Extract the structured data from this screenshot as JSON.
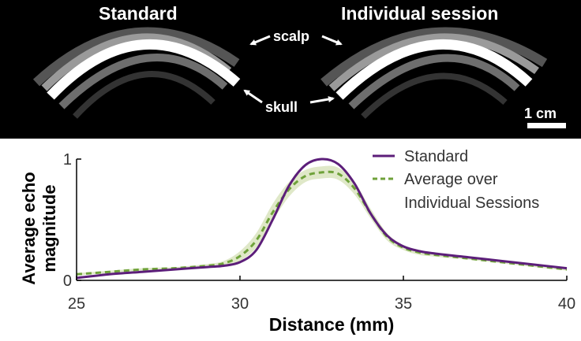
{
  "image_panel": {
    "left_title": "Standard",
    "right_title": "Individual session",
    "scalp_label": "scalp",
    "skull_label": "skull",
    "scale_bar_label": "1 cm",
    "background_color": "#000000",
    "tissue_color": "#ffffff"
  },
  "chart_data": {
    "type": "line",
    "xlabel": "Distance (mm)",
    "ylabel": "Average echo magnitude",
    "xlim": [
      25,
      40
    ],
    "ylim": [
      0,
      1
    ],
    "x_ticks": [
      "25",
      "30",
      "35",
      "40"
    ],
    "y_ticks": [
      "0",
      "1"
    ],
    "grid": false,
    "legend_position": "top-right",
    "legend_entries": [
      "Standard",
      "Average over",
      "Individual Sessions"
    ],
    "series": [
      {
        "name": "Standard",
        "color": "#5c1e7a",
        "style": "solid",
        "x": [
          25,
          26,
          27,
          28,
          29,
          29.5,
          30,
          30.5,
          31,
          31.5,
          32,
          32.5,
          33,
          33.5,
          34,
          34.5,
          35,
          35.5,
          36,
          37,
          38,
          39,
          40
        ],
        "y": [
          0.02,
          0.05,
          0.07,
          0.09,
          0.11,
          0.12,
          0.15,
          0.25,
          0.5,
          0.78,
          0.95,
          1.0,
          0.96,
          0.8,
          0.55,
          0.37,
          0.28,
          0.24,
          0.22,
          0.19,
          0.16,
          0.13,
          0.1
        ]
      },
      {
        "name": "Average over Individual Sessions",
        "color": "#6fa23a",
        "style": "dashed",
        "band_color": "#dfe8c8",
        "x": [
          25,
          26,
          27,
          28,
          29,
          29.5,
          30,
          30.5,
          31,
          31.5,
          32,
          32.5,
          33,
          33.5,
          34,
          34.5,
          35,
          35.5,
          36,
          37,
          38,
          39,
          40
        ],
        "y": [
          0.05,
          0.07,
          0.09,
          0.1,
          0.12,
          0.14,
          0.2,
          0.33,
          0.56,
          0.75,
          0.86,
          0.89,
          0.88,
          0.76,
          0.55,
          0.36,
          0.27,
          0.23,
          0.21,
          0.18,
          0.15,
          0.12,
          0.09
        ],
        "band": [
          0.01,
          0.01,
          0.01,
          0.01,
          0.015,
          0.02,
          0.04,
          0.06,
          0.07,
          0.06,
          0.05,
          0.05,
          0.05,
          0.05,
          0.04,
          0.03,
          0.02,
          0.02,
          0.015,
          0.01,
          0.01,
          0.01,
          0.01
        ]
      }
    ]
  }
}
